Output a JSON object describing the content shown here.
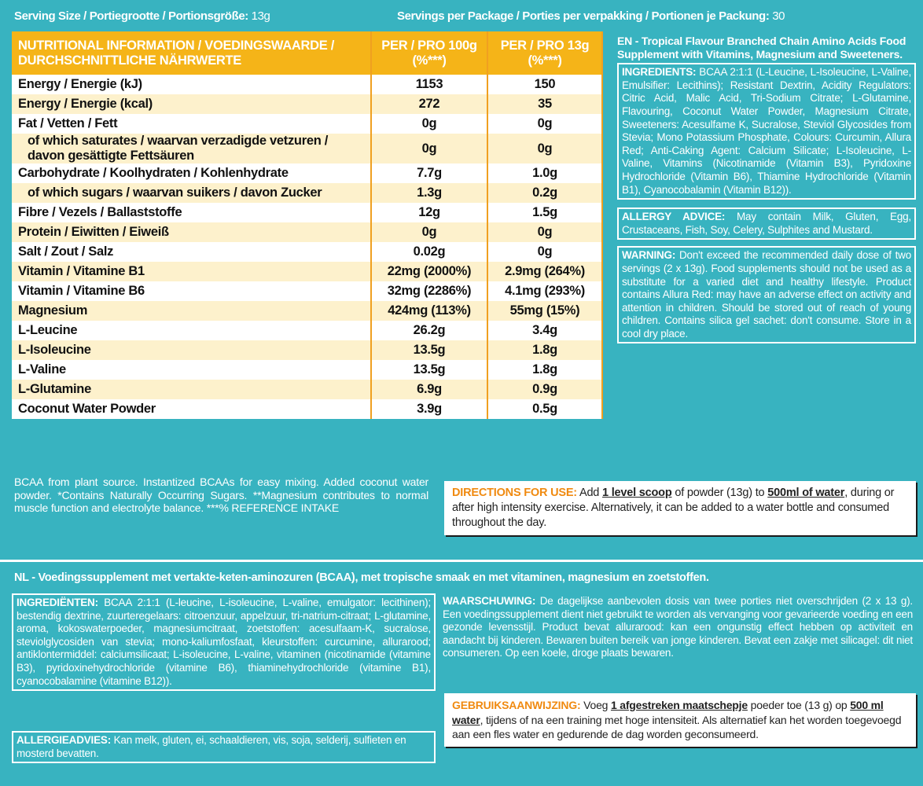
{
  "header": {
    "serving_label": "Serving Size / Portiegrootte / Portionsgröße:",
    "serving_value": "13g",
    "servings_label": "Servings per Package / Porties per verpakking / Portionen je Packung:",
    "servings_value": "30"
  },
  "table": {
    "header": [
      "NUTRITIONAL INFORMATION / VOEDINGSWAARDE / DURCHSCHNITTLICHE NÄHRWERTE",
      "PER / PRO 100g (%***)",
      "PER / PRO 13g (%***)"
    ],
    "rows": [
      [
        "Energy / Energie (kJ)",
        "1153",
        "150"
      ],
      [
        "Energy / Energie (kcal)",
        "272",
        "35"
      ],
      [
        "Fat / Vetten / Fett",
        "0g",
        "0g"
      ],
      [
        "of which saturates / waarvan verzadigde vetzuren / davon gesättigte Fettsäuren",
        "0g",
        "0g"
      ],
      [
        "Carbohydrate / Koolhydraten / Kohlenhydrate",
        "7.7g",
        "1.0g"
      ],
      [
        "of which sugars / waarvan suikers / davon Zucker",
        "1.3g",
        "0.2g"
      ],
      [
        "Fibre / Vezels / Ballaststoffe",
        "12g",
        "1.5g"
      ],
      [
        "Protein / Eiwitten / Eiweiß",
        "0g",
        "0g"
      ],
      [
        "Salt / Zout / Salz",
        "0.02g",
        "0g"
      ],
      [
        "Vitamin / Vitamine B1",
        "22mg (2000%)",
        "2.9mg (264%)"
      ],
      [
        "Vitamin / Vitamine B6",
        "32mg (2286%)",
        "4.1mg (293%)"
      ],
      [
        "Magnesium",
        "424mg (113%)",
        "55mg (15%)"
      ],
      [
        "L-Leucine",
        "26.2g",
        "3.4g"
      ],
      [
        "L-Isoleucine",
        "13.5g",
        "1.8g"
      ],
      [
        "L-Valine",
        "13.5g",
        "1.8g"
      ],
      [
        "L-Glutamine",
        "6.9g",
        "0.9g"
      ],
      [
        "Coconut Water Powder",
        "3.9g",
        "0.5g"
      ]
    ]
  },
  "en": {
    "title": "EN - Tropical Flavour Branched Chain Amino Acids Food Supplement with Vitamins, Magnesium and Sweeteners.",
    "ingredients_label": "INGREDIENTS:",
    "ingredients_text": "BCAA 2:1:1 (L-Leucine, L-Isoleucine, L-Valine, Emulsifier: Lecithins); Resistant Dextrin, Acidity Regulators: Citric Acid, Malic Acid, Tri-Sodium Citrate; L-Glutamine, Flavouring, Coconut Water Powder, Magnesium Citrate, Sweeteners: Acesulfame K, Sucralose, Steviol Glycosides from Stevia; Mono Potassium Phosphate, Colours: Curcumin, Allura Red; Anti-Caking Agent: Calcium Silicate; L-Isoleucine, L-Valine, Vitamins (Nicotinamide (Vitamin B3), Pyridoxine Hydrochloride (Vitamin B6), Thiamine Hydrochloride (Vitamin B1), Cyanocobalamin (Vitamin B12)).",
    "allergy_label": "ALLERGY ADVICE:",
    "allergy_text": "May contain Milk, Gluten, Egg, Crustaceans, Fish, Soy, Celery, Sulphites and Mustard.",
    "warning_label": "WARNING:",
    "warning_text": "Don't exceed the recommended daily dose of two servings (2 x 13g). Food supplements should not be used as a substitute for a varied diet and healthy lifestyle. Product contains Allura Red: may have an adverse effect on activity and attention in children. Should be stored out of reach of young children. Contains silica gel sachet: don't consume. Store in a cool dry place.",
    "notes": "BCAA from plant source. Instantized BCAAs for easy mixing. Added coconut water powder. *Contains Naturally Occurring Sugars. **Magnesium contributes to normal muscle function and electrolyte balance. ***% REFERENCE INTAKE",
    "directions": {
      "label": "DIRECTIONS FOR USE:",
      "part1": "Add",
      "scoop": "1 level scoop",
      "part2": "of powder (13g) to",
      "water": "500ml of water",
      "part3": ", during or after high intensity exercise. Alternatively, it can be added to a water bottle and consumed throughout the day."
    }
  },
  "nl": {
    "title": "NL - Voedingssupplement met vertakte-keten-aminozuren (BCAA), met tropische smaak en met vitaminen, magnesium en zoetstoffen.",
    "ingredients_label": "INGREDIËNTEN:",
    "ingredients_text": "BCAA 2:1:1 (L-leucine, L-isoleucine, L-valine, emulgator: lecithinen); bestendig dextrine, zuurteregelaars: citroenzuur, appelzuur, tri-natrium-citraat; L-glutamine, aroma, kokoswaterpoeder, magnesiumcitraat, zoetstoffen: acesulfaam-K, sucralose, steviolglycosiden van stevia; mono-kaliumfosfaat, kleurstoffen: curcumine, allurarood; antiklontermiddel: calciumsilicaat; L-isoleucine, L-valine, vitaminen (nicotinamide (vitamine B3), pyridoxinehydrochloride (vitamine B6), thiaminehydrochloride (vitamine B1), cyanocobalamine (vitamine B12)).",
    "allergy_label": "ALLERGIEADVIES:",
    "allergy_text": "Kan melk, gluten, ei, schaaldieren, vis, soja, selderij, sulfieten en mosterd bevatten.",
    "warning_label": "WAARSCHUWING:",
    "warning_text": "De dagelijkse aanbevolen dosis van twee porties niet overschrijden (2 x 13 g). Een voedingssupplement dient niet gebruikt te worden als vervanging voor gevarieerde voeding en een gezonde levensstijl. Product bevat allurarood: kan een ongunstig effect hebben op activiteit en aandacht bij kinderen. Bewaren buiten bereik van jonge kinderen. Bevat een zakje met silicagel: dit niet consumeren. Op een koele, droge plaats bewaren.",
    "directions": {
      "label": "GEBRUIKSAANWIJZING:",
      "part1": "Voeg",
      "scoop": "1 afgestreken maatschepje",
      "part2": "poeder toe (13 g) op",
      "water": "500 ml water",
      "part3": ", tijdens of na een training met hoge intensiteit. Als alternatief kan het worden toegevoegd aan een fles water en gedurende de dag worden geconsumeerd."
    }
  }
}
